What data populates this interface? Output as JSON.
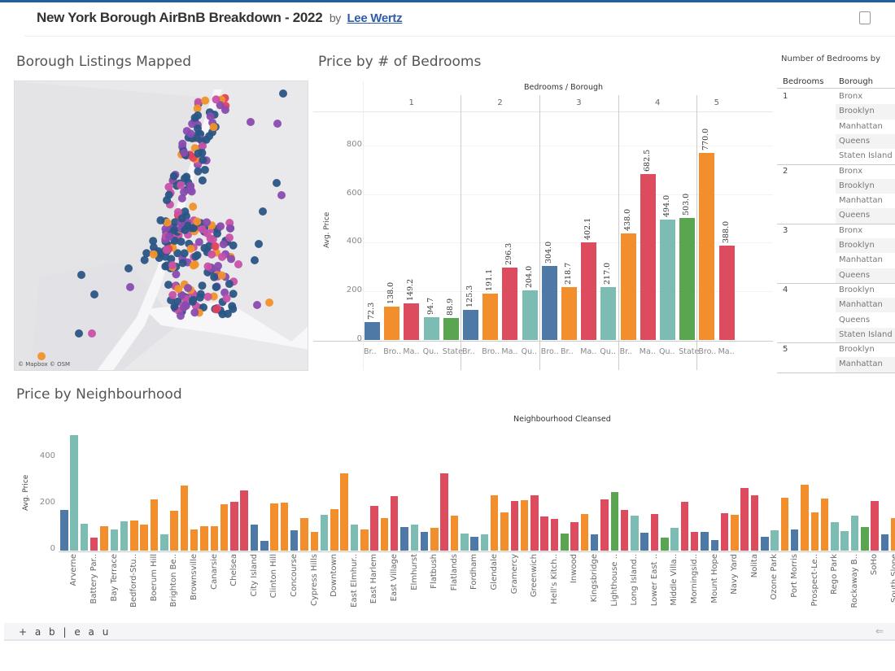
{
  "header": {
    "title": "New York Borough AirBnB Breakdown - 2022",
    "by": "by",
    "author": "Lee Wertz"
  },
  "colors": {
    "Bronx": "#4e79a7",
    "Brooklyn": "#f28e2b",
    "Manhattan": "#dc4b5e",
    "Queens": "#7dbcb2",
    "Staten Island": "#5aa650"
  },
  "map": {
    "title": "Borough Listings Mapped",
    "attribution": "© Mapbox © OSM",
    "dot_colors": [
      "#2a5585",
      "#8a4bb0",
      "#c850a8",
      "#f0922a",
      "#e3415a"
    ]
  },
  "bedrooms_chart": {
    "title": "Price by # of Bedrooms",
    "header": "Bedrooms / Borough",
    "ylabel": "Avg. Price",
    "yticks": [
      0,
      200,
      400,
      600,
      800
    ],
    "ylim": [
      0,
      900
    ],
    "groups": [
      {
        "label": "1",
        "bars": [
          {
            "label": "Br..",
            "borough": "Bronx",
            "value": 72.3,
            "text": "72.3"
          },
          {
            "label": "Bro..",
            "borough": "Brooklyn",
            "value": 138.0,
            "text": "138.0"
          },
          {
            "label": "Ma..",
            "borough": "Manhattan",
            "value": 149.2,
            "text": "149.2"
          },
          {
            "label": "Qu..",
            "borough": "Queens",
            "value": 94.7,
            "text": "94.7"
          },
          {
            "label": "State",
            "borough": "Staten Island",
            "value": 88.9,
            "text": "88.9"
          }
        ]
      },
      {
        "label": "2",
        "bars": [
          {
            "label": "Br..",
            "borough": "Bronx",
            "value": 125.3,
            "text": "125.3"
          },
          {
            "label": "Bro..",
            "borough": "Brooklyn",
            "value": 191.1,
            "text": "191.1"
          },
          {
            "label": "Ma..",
            "borough": "Manhattan",
            "value": 296.3,
            "text": "296.3"
          },
          {
            "label": "Qu..",
            "borough": "Queens",
            "value": 204.0,
            "text": "204.0"
          }
        ]
      },
      {
        "label": "3",
        "bars": [
          {
            "label": "Bro..",
            "borough": "Bronx",
            "value": 304.0,
            "text": "304.0"
          },
          {
            "label": "Br..",
            "borough": "Brooklyn",
            "value": 218.7,
            "text": "218.7"
          },
          {
            "label": "Ma..",
            "borough": "Manhattan",
            "value": 402.1,
            "text": "402.1"
          },
          {
            "label": "Qu..",
            "borough": "Queens",
            "value": 217.0,
            "text": "217.0"
          }
        ]
      },
      {
        "label": "4",
        "bars": [
          {
            "label": "Br..",
            "borough": "Brooklyn",
            "value": 438.0,
            "text": "438.0"
          },
          {
            "label": "Ma..",
            "borough": "Manhattan",
            "value": 682.5,
            "text": "682.5"
          },
          {
            "label": "Qu..",
            "borough": "Queens",
            "value": 494.0,
            "text": "494.0"
          },
          {
            "label": "State",
            "borough": "Staten Island",
            "value": 503.0,
            "text": "503.0"
          }
        ]
      },
      {
        "label": "5",
        "bars": [
          {
            "label": "Bro..",
            "borough": "Brooklyn",
            "value": 770.0,
            "text": "770.0"
          },
          {
            "label": "Ma..",
            "borough": "Manhattan",
            "value": 388.0,
            "text": "388.0"
          }
        ]
      }
    ]
  },
  "table": {
    "title": "Number of Bedrooms by",
    "headers": [
      "Bedrooms",
      "Borough"
    ],
    "groups": [
      {
        "bedrooms": "1",
        "boroughs": [
          "Bronx",
          "Brooklyn",
          "Manhattan",
          "Queens",
          "Staten Island"
        ]
      },
      {
        "bedrooms": "2",
        "boroughs": [
          "Bronx",
          "Brooklyn",
          "Manhattan",
          "Queens"
        ]
      },
      {
        "bedrooms": "3",
        "boroughs": [
          "Bronx",
          "Brooklyn",
          "Manhattan",
          "Queens"
        ]
      },
      {
        "bedrooms": "4",
        "boroughs": [
          "Brooklyn",
          "Manhattan",
          "Queens",
          "Staten Island"
        ]
      },
      {
        "bedrooms": "5",
        "boroughs": [
          "Brooklyn",
          "Manhattan"
        ]
      }
    ]
  },
  "chart_data": {
    "type": "bar",
    "title": "Price by Neighbourhood",
    "xlabel": "Neighbourhood Cleansed",
    "ylabel": "Avg. Price",
    "yticks": [
      0,
      200,
      400
    ],
    "ylim": [
      0,
      520
    ],
    "tick_labels": [
      "Arverne",
      "Battery Par..",
      "Bay Terrace",
      "Bedford-Stu..",
      "Boerum Hill",
      "Brighton Be..",
      "Brownsville",
      "Canarsie",
      "Chelsea",
      "City Island",
      "Clinton Hill",
      "Concourse",
      "Cypress Hills",
      "Downtown",
      "East Elmhur..",
      "East Harlem",
      "East Village",
      "Elmhurst",
      "Flatbush",
      "Flatlands",
      "Fordham",
      "Glendale",
      "Gramercy",
      "Greenwich",
      "Hell's Kitch..",
      "Inwood",
      "Kingsbridge",
      "Lighthouse ..",
      "Long Island..",
      "Lower East ..",
      "Middle Villa..",
      "Morningsid..",
      "Mount Hope",
      "Navy Yard",
      "Nolita",
      "Ozone Park",
      "Port Morris",
      "Prospect-Le..",
      "Rego Park",
      "Rockaway B..",
      "SoHo",
      "South Slope"
    ],
    "borough_codes": [
      "Bronx",
      "Brooklyn",
      "Manhattan",
      "Queens",
      "Staten Island"
    ],
    "bars": [
      [
        0,
        176
      ],
      [
        3,
        500
      ],
      [
        3,
        116
      ],
      [
        2,
        56
      ],
      [
        1,
        105
      ],
      [
        3,
        92
      ],
      [
        3,
        126
      ],
      [
        1,
        130
      ],
      [
        1,
        112
      ],
      [
        1,
        222
      ],
      [
        3,
        70
      ],
      [
        1,
        172
      ],
      [
        1,
        282
      ],
      [
        1,
        92
      ],
      [
        1,
        105
      ],
      [
        1,
        105
      ],
      [
        1,
        200
      ],
      [
        2,
        210
      ],
      [
        2,
        261
      ],
      [
        0,
        112
      ],
      [
        0,
        42
      ],
      [
        1,
        205
      ],
      [
        1,
        208
      ],
      [
        0,
        88
      ],
      [
        1,
        140
      ],
      [
        1,
        80
      ],
      [
        3,
        154
      ],
      [
        1,
        179
      ],
      [
        1,
        332
      ],
      [
        3,
        112
      ],
      [
        1,
        92
      ],
      [
        2,
        193
      ],
      [
        1,
        141
      ],
      [
        2,
        235
      ],
      [
        0,
        102
      ],
      [
        3,
        112
      ],
      [
        0,
        80
      ],
      [
        1,
        98
      ],
      [
        2,
        332
      ],
      [
        1,
        152
      ],
      [
        3,
        73
      ],
      [
        0,
        60
      ],
      [
        3,
        69
      ],
      [
        1,
        238
      ],
      [
        1,
        164
      ],
      [
        2,
        215
      ],
      [
        1,
        219
      ],
      [
        2,
        238
      ],
      [
        2,
        148
      ],
      [
        2,
        136
      ],
      [
        4,
        75
      ],
      [
        2,
        122
      ],
      [
        1,
        158
      ],
      [
        0,
        70
      ],
      [
        2,
        222
      ],
      [
        4,
        252
      ],
      [
        2,
        176
      ],
      [
        3,
        150
      ],
      [
        0,
        77
      ],
      [
        2,
        158
      ],
      [
        4,
        57
      ],
      [
        3,
        98
      ],
      [
        2,
        209
      ],
      [
        2,
        80
      ],
      [
        0,
        80
      ],
      [
        0,
        47
      ],
      [
        2,
        163
      ],
      [
        1,
        154
      ],
      [
        2,
        271
      ],
      [
        2,
        238
      ],
      [
        0,
        60
      ],
      [
        3,
        88
      ],
      [
        1,
        228
      ],
      [
        0,
        92
      ],
      [
        1,
        283
      ],
      [
        1,
        164
      ],
      [
        1,
        225
      ],
      [
        3,
        122
      ],
      [
        3,
        84
      ],
      [
        3,
        150
      ],
      [
        4,
        103
      ],
      [
        2,
        215
      ],
      [
        0,
        70
      ],
      [
        1,
        141
      ]
    ]
  },
  "footer": {
    "logo": "+ a b | e a u",
    "back": "⇐"
  }
}
